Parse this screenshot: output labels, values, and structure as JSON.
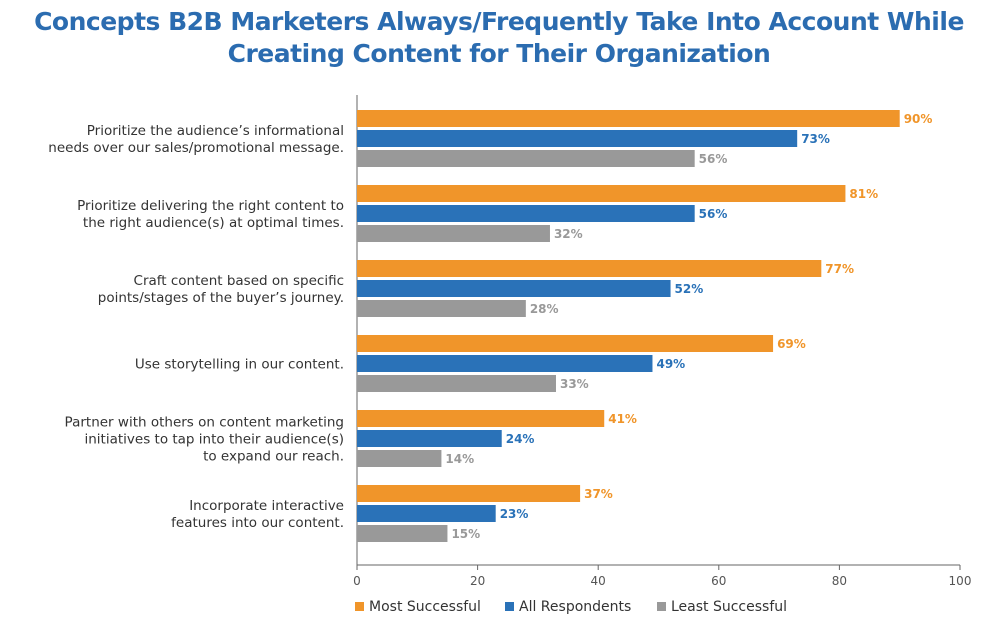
{
  "chart_data": {
    "type": "bar",
    "orientation": "horizontal",
    "title": [
      "Concepts B2B Marketers Always/Frequently Take Into Account While",
      "Creating Content for Their Organization"
    ],
    "categories": [
      [
        "Prioritize the audience’s informational",
        "needs over our sales/promotional message."
      ],
      [
        "Prioritize delivering the right content to",
        "the right audience(s) at optimal times."
      ],
      [
        "Craft content based on specific",
        "points/stages of the buyer’s journey."
      ],
      [
        "Use storytelling in our content."
      ],
      [
        "Partner with others on content marketing",
        "initiatives to tap into their audience(s)",
        "to expand our reach."
      ],
      [
        "Incorporate interactive",
        "features into our content."
      ]
    ],
    "series": [
      {
        "name": "Most Successful",
        "color": "#f0952a",
        "values": [
          90,
          81,
          77,
          69,
          41,
          37
        ],
        "labels": [
          "90%",
          "81%",
          "77%",
          "69%",
          "41%",
          "37%"
        ]
      },
      {
        "name": "All Respondents",
        "color": "#2a72b8",
        "values": [
          73,
          56,
          52,
          49,
          24,
          23
        ],
        "labels": [
          "73%",
          "56%",
          "52%",
          "49%",
          "24%",
          "23%"
        ]
      },
      {
        "name": "Least Successful",
        "color": "#999999",
        "values": [
          56,
          32,
          28,
          33,
          14,
          15
        ],
        "labels": [
          "56%",
          "32%",
          "28%",
          "33%",
          "14%",
          "15%"
        ]
      }
    ],
    "xlim": [
      0,
      100
    ],
    "xticks": [
      0,
      20,
      40,
      60,
      80,
      100
    ],
    "grid": false,
    "legend": "bottom"
  }
}
